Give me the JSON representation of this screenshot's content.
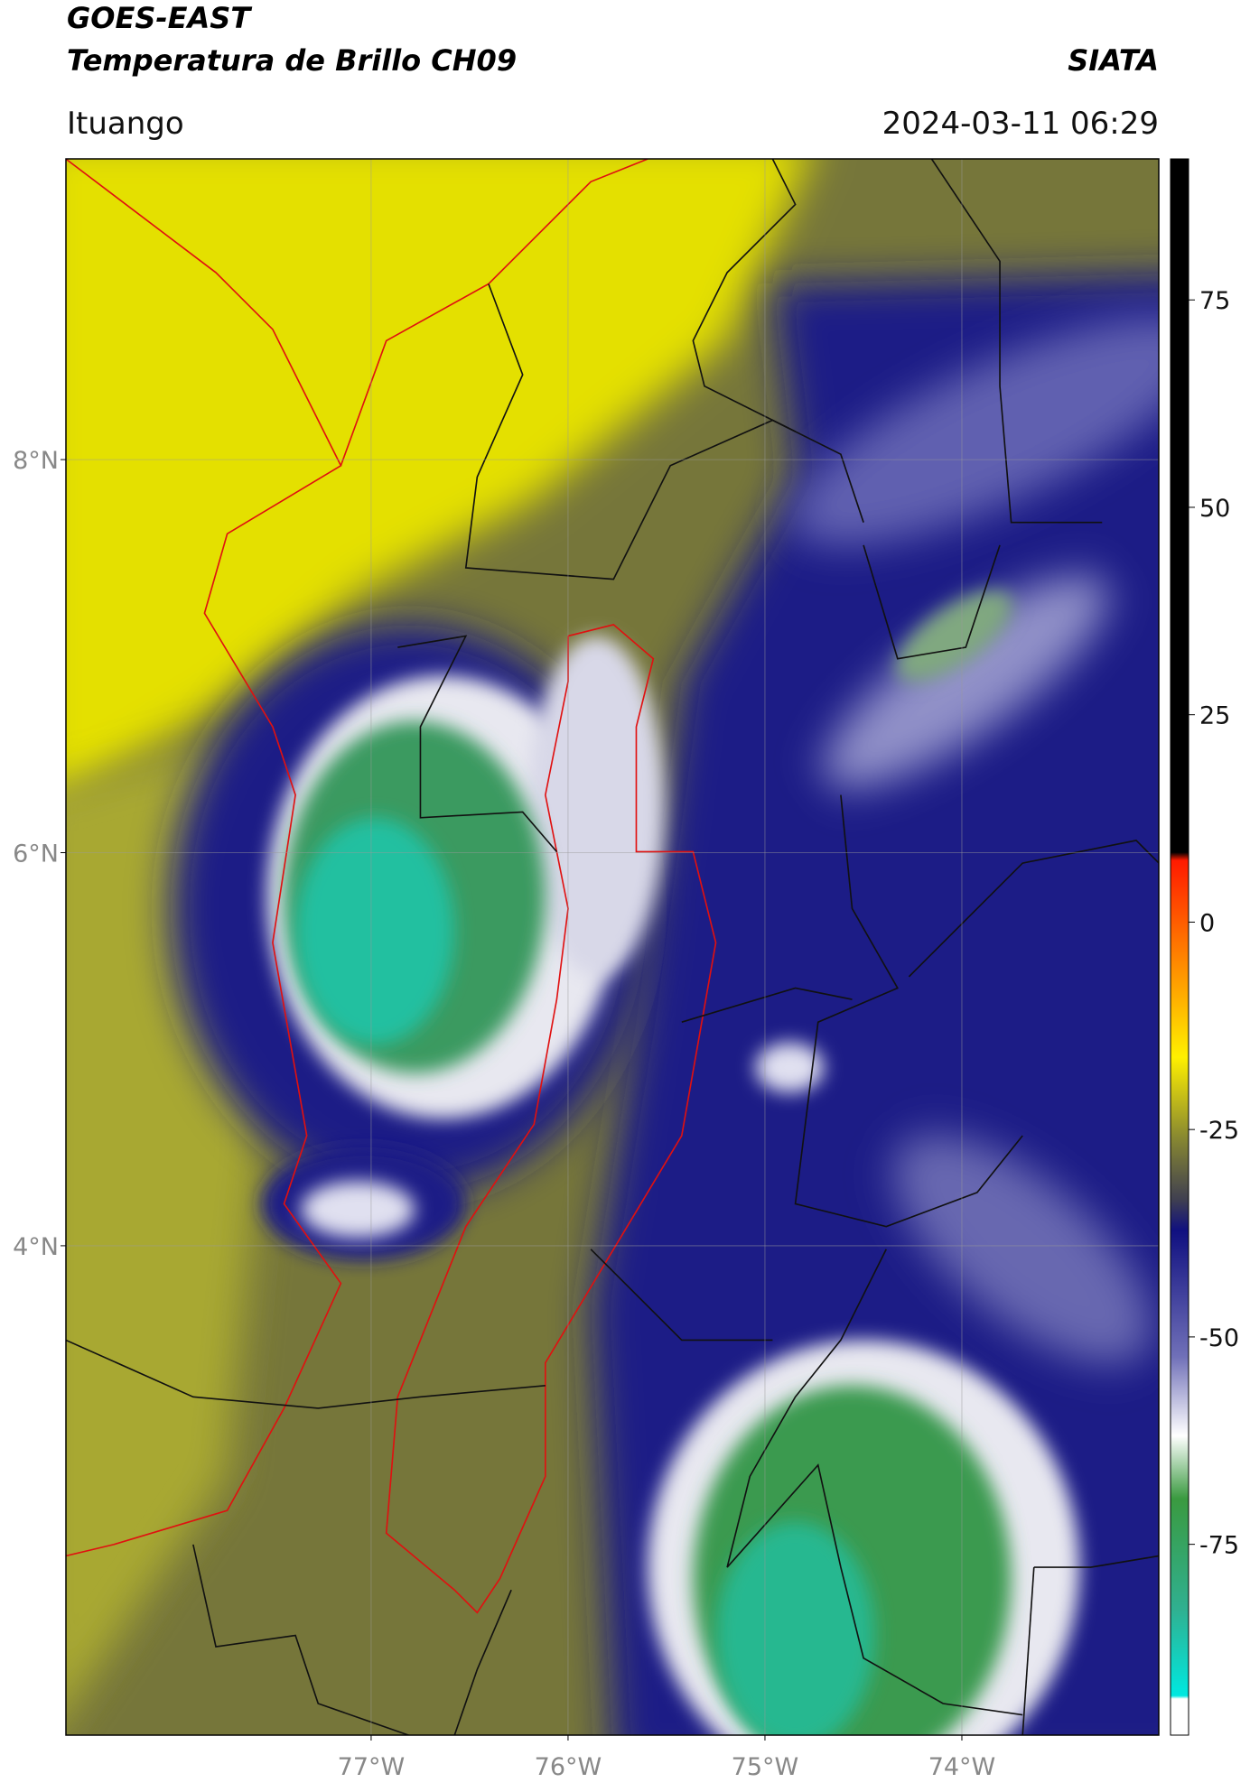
{
  "header": {
    "title": "GOES-EAST",
    "subtitle": "Temperatura de Brillo CH09",
    "source": "SIATA",
    "location": "Ituango",
    "timestamp": "2024-03-11 06:29"
  },
  "map": {
    "xlim": [
      -78.55,
      -73.0
    ],
    "ylim": [
      1.51,
      9.53
    ],
    "lat_ticks": [
      {
        "value": 8,
        "label": "8°N"
      },
      {
        "value": 6,
        "label": "6°N"
      },
      {
        "value": 4,
        "label": "4°N"
      }
    ],
    "lon_ticks": [
      {
        "value": -77,
        "label": "77°W"
      },
      {
        "value": -76,
        "label": "76°W"
      },
      {
        "value": -75,
        "label": "75°W"
      },
      {
        "value": -74,
        "label": "74°W"
      }
    ]
  },
  "colorbar": {
    "vlim": [
      -98,
      92
    ],
    "ticks": [
      75,
      50,
      25,
      0,
      -25,
      -50,
      -75
    ]
  }
}
